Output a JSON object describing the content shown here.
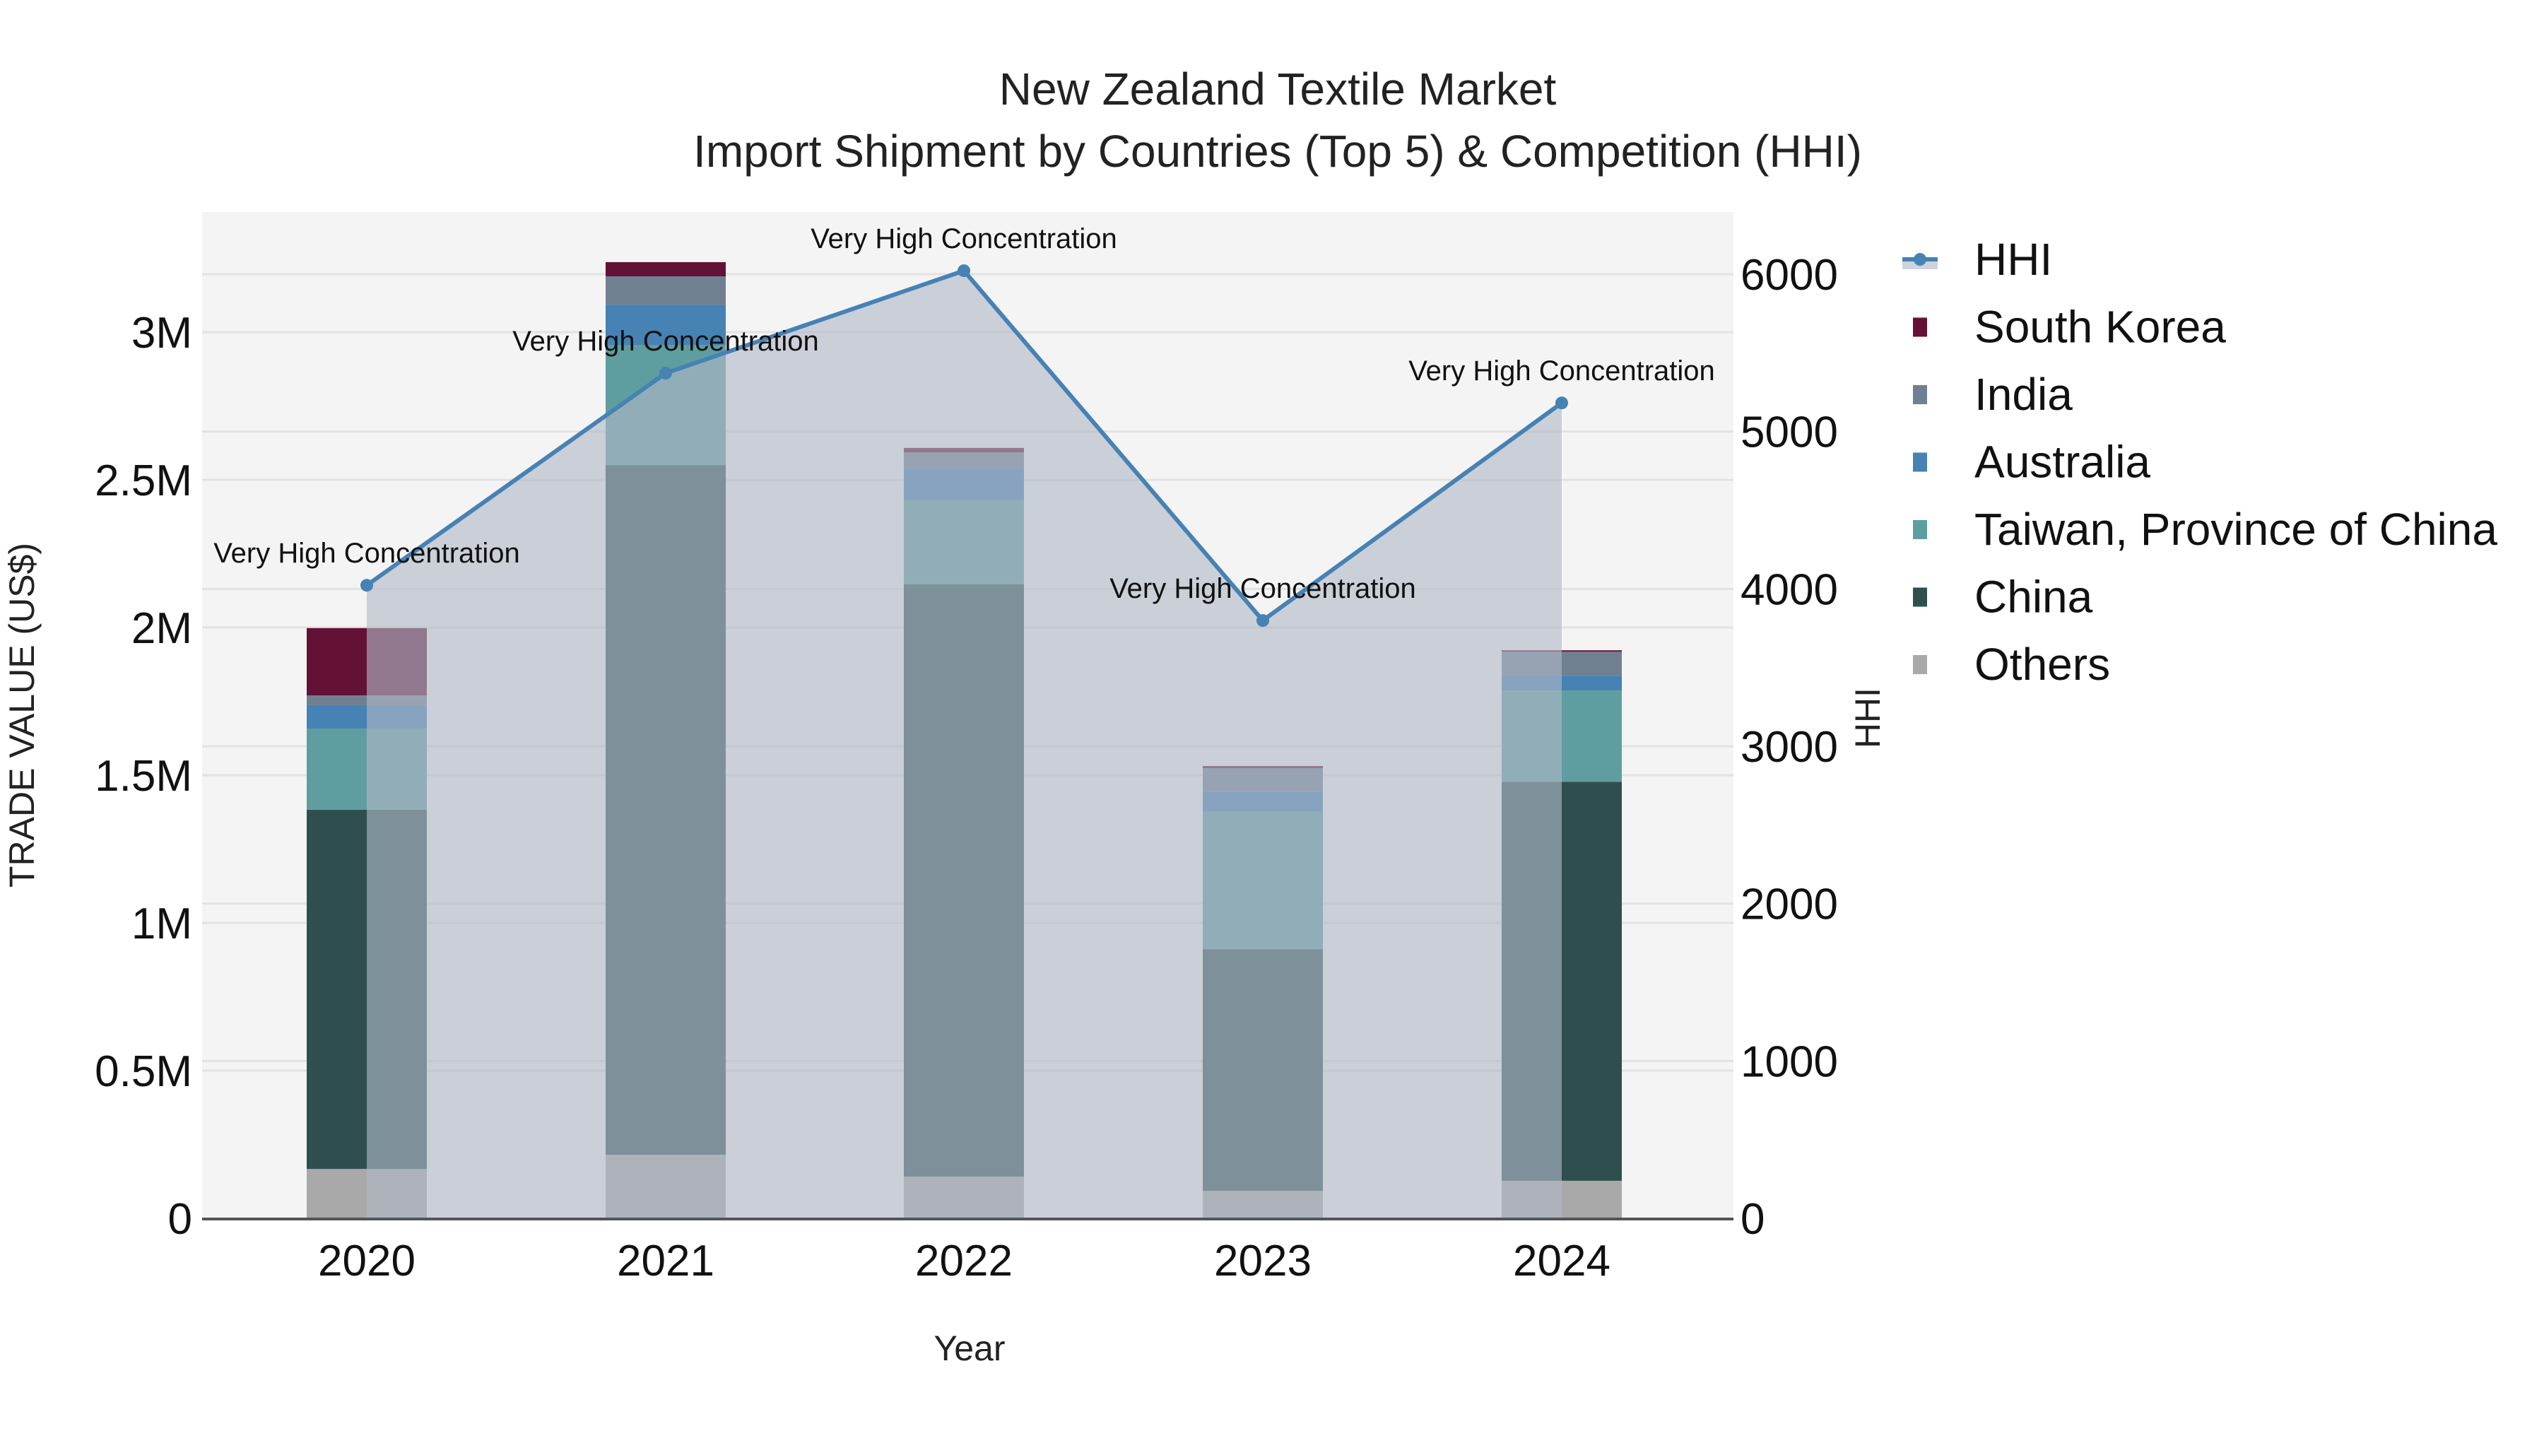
{
  "chart_data": {
    "type": "bar",
    "stacked": true,
    "title": "New Zealand Textile Market",
    "subtitle": "Import Shipment by Countries (Top 5) & Competition (HHI)",
    "xlabel": "Year",
    "ylabel": "TRADE VALUE (US$)",
    "y2label": "HHI",
    "categories": [
      "2020",
      "2021",
      "2022",
      "2023",
      "2024"
    ],
    "ylim": [
      0,
      3400000
    ],
    "y_ticks": [
      0,
      500000,
      1000000,
      1500000,
      2000000,
      2500000,
      3000000
    ],
    "y_tick_labels": [
      "0",
      "0.5M",
      "1M",
      "1.5M",
      "2M",
      "2.5M",
      "3M"
    ],
    "y2lim": [
      0,
      6400
    ],
    "y2_ticks": [
      0,
      1000,
      2000,
      3000,
      4000,
      5000,
      6000
    ],
    "y2_tick_labels": [
      "0",
      "1000",
      "2000",
      "3000",
      "4000",
      "5000",
      "6000"
    ],
    "grid": true,
    "legend_position": "right",
    "series": [
      {
        "name": "Others",
        "color": "#A9A9A9",
        "values": [
          167000,
          215000,
          141000,
          93000,
          127000
        ]
      },
      {
        "name": "China",
        "color": "#2F4F4F",
        "values": [
          1216000,
          2335000,
          2005000,
          818000,
          1351000
        ]
      },
      {
        "name": "Taiwan, Province of China",
        "color": "#5F9EA0",
        "values": [
          275000,
          405000,
          285000,
          465000,
          309000
        ]
      },
      {
        "name": "Australia",
        "color": "#4682B4",
        "values": [
          79000,
          138000,
          107000,
          67000,
          50000
        ]
      },
      {
        "name": "India",
        "color": "#708090",
        "values": [
          33000,
          96000,
          55000,
          81000,
          81000
        ]
      },
      {
        "name": "South Korea",
        "color": "#631235",
        "values": [
          228000,
          48000,
          15000,
          7000,
          5000
        ]
      }
    ],
    "line_series": {
      "name": "HHI",
      "axis": "y2",
      "color": "#4682B4",
      "fill": "rgba(176,184,198,0.62)",
      "values": [
        4023,
        5371,
        6022,
        3799,
        5182
      ]
    },
    "annotations": [
      {
        "x": "2020",
        "text": "Very High Concentration"
      },
      {
        "x": "2021",
        "text": "Very High Concentration"
      },
      {
        "x": "2022",
        "text": "Very High Concentration"
      },
      {
        "x": "2023",
        "text": "Very High Concentration"
      },
      {
        "x": "2024",
        "text": "Very High Concentration"
      }
    ],
    "legend": [
      "HHI",
      "South Korea",
      "India",
      "Australia",
      "Taiwan, Province of China",
      "China",
      "Others"
    ]
  },
  "colors": {
    "plot_bg": "#F4F4F4",
    "grid": "#E2E2E2",
    "axis_line": "#555555"
  }
}
